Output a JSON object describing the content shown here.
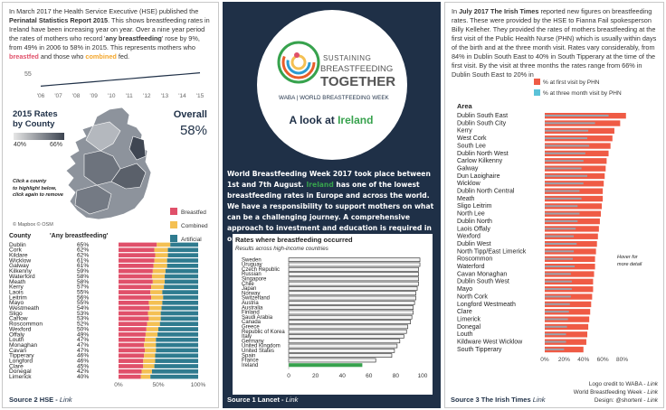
{
  "colors": {
    "breastfed": "#e0506a",
    "combined": "#f4c053",
    "artificial": "#2f7b8f",
    "green": "#37a24d",
    "orange": "#f4a62a",
    "navy": "#1f3047",
    "phn_first": "#ef5b45",
    "phn_three": "#5bc2d8"
  },
  "left": {
    "intro_1": "In March 2017 the Health Service Executive (HSE) published the ",
    "intro_report": "Perinatal Statistics Report 2015",
    "intro_2": ". This shows breastfeeding rates in Ireland have been increasing year on year. Over a nine year period the rates of mothers who record '",
    "intro_any": "any breastfeeding",
    "intro_3": "' rose by 9%, from 49% in 2006 to 58% in 2015. This represents mothers who ",
    "intro_breastfed": "breastfed",
    "intro_4": " and those who ",
    "intro_combined": "combined",
    "intro_5": " fed.",
    "trend": {
      "y_label": "55",
      "years": [
        "'06",
        "'07",
        "'08",
        "'09",
        "'10",
        "'11",
        "'12",
        "'13",
        "'14",
        "'15"
      ],
      "values": [
        49,
        50,
        51,
        52,
        53,
        54,
        55,
        56,
        57,
        58
      ]
    },
    "map": {
      "title_1": "2015 Rates",
      "title_2": "by County",
      "legend_min": "40%",
      "legend_max": "66%",
      "overall_label": "Overall",
      "overall_value": "58%",
      "click_hint_1": "Click a county",
      "click_hint_2": "to highlight below,",
      "click_hint_3": "click again to remove",
      "attribution": "© Mapbox  © OSM"
    },
    "legend": [
      "Breastfed",
      "Combined",
      "Artificial"
    ],
    "table_header_county": "County",
    "table_header_any": "'Any breastfeeding'",
    "axis_ticks": [
      "0%",
      "50%",
      "100%"
    ],
    "source_label": "Source 2 HSE - ",
    "source_link": "Link"
  },
  "county_rows": [
    {
      "county": "Dublin",
      "rate": "65%",
      "b": 48,
      "c": 17
    },
    {
      "county": "Cork",
      "rate": "62%",
      "b": 45,
      "c": 17
    },
    {
      "county": "Kildare",
      "rate": "62%",
      "b": 46,
      "c": 16
    },
    {
      "county": "Wicklow",
      "rate": "61%",
      "b": 45,
      "c": 16
    },
    {
      "county": "Galway",
      "rate": "61%",
      "b": 44,
      "c": 17
    },
    {
      "county": "Kilkenny",
      "rate": "59%",
      "b": 43,
      "c": 16
    },
    {
      "county": "Waterford",
      "rate": "58%",
      "b": 42,
      "c": 16
    },
    {
      "county": "Meath",
      "rate": "58%",
      "b": 43,
      "c": 15
    },
    {
      "county": "Kerry",
      "rate": "57%",
      "b": 41,
      "c": 16
    },
    {
      "county": "Laois",
      "rate": "55%",
      "b": 40,
      "c": 15
    },
    {
      "county": "Leitrim",
      "rate": "56%",
      "b": 41,
      "c": 15
    },
    {
      "county": "Mayo",
      "rate": "55%",
      "b": 38,
      "c": 17
    },
    {
      "county": "Westmeath",
      "rate": "54%",
      "b": 39,
      "c": 15
    },
    {
      "county": "Sligo",
      "rate": "53%",
      "b": 37,
      "c": 16
    },
    {
      "county": "Carlow",
      "rate": "53%",
      "b": 38,
      "c": 15
    },
    {
      "county": "Roscommon",
      "rate": "52%",
      "b": 36,
      "c": 16
    },
    {
      "county": "Wexford",
      "rate": "50%",
      "b": 35,
      "c": 15
    },
    {
      "county": "Offaly",
      "rate": "49%",
      "b": 34,
      "c": 15
    },
    {
      "county": "Louth",
      "rate": "47%",
      "b": 33,
      "c": 14
    },
    {
      "county": "Monaghan",
      "rate": "47%",
      "b": 32,
      "c": 15
    },
    {
      "county": "Cavan",
      "rate": "47%",
      "b": 33,
      "c": 14
    },
    {
      "county": "Tipperary",
      "rate": "46%",
      "b": 32,
      "c": 14
    },
    {
      "county": "Longford",
      "rate": "46%",
      "b": 31,
      "c": 15
    },
    {
      "county": "Clare",
      "rate": "45%",
      "b": 31,
      "c": 14
    },
    {
      "county": "Donegal",
      "rate": "42%",
      "b": 29,
      "c": 13
    },
    {
      "county": "Limerick",
      "rate": "40%",
      "b": 28,
      "c": 12
    }
  ],
  "mid": {
    "logo_line1": "SUSTAINING",
    "logo_line2": "BREASTFEEDING",
    "logo_line3": "TOGETHER",
    "logo_sub": "WABA | WORLD BREASTFEEDING WEEK",
    "look_prefix": "A look at ",
    "look_country": "Ireland",
    "text_1": "World Breastfeeding Week 2017 took place between 1st and 7th August. ",
    "text_ireland": "Ireland",
    "text_2": " has one of the lowest breastfeeding rates in Europe and across the world. We have a responsibility to support mothers on what can be a challenging journey. A comprehensive approach to investment and education is required in order to achieve s...",
    "chart_title": "Rates where breastfeeding occurred",
    "chart_subtitle": "Results across high-income countries",
    "source_label": "Source 1 Lancet - ",
    "source_link": "Link"
  },
  "chart_data": {
    "type": "bar",
    "title": "Rates where breastfeeding occurred",
    "subtitle": "Results across high-income countries",
    "categories": [
      "Sweden",
      "Uruguay",
      "Czech Republic",
      "Russian",
      "Singapore",
      "Chile",
      "Japan",
      "Norway",
      "Switzerland",
      "Austria",
      "Australia",
      "Finland",
      "Saudi Arabia",
      "Canada",
      "Greece",
      "Republic of Korea",
      "Italy",
      "Germany",
      "United Kingdom",
      "United States",
      "Spain",
      "France",
      "Ireland"
    ],
    "values": [
      98,
      98,
      97,
      97,
      97,
      97,
      96,
      95,
      95,
      94,
      93,
      93,
      92,
      91,
      89,
      88,
      86,
      83,
      81,
      79,
      77,
      65,
      55
    ],
    "highlight": "Ireland",
    "xlim": [
      0,
      100
    ],
    "xticks": [
      "0",
      "20",
      "40",
      "60",
      "80",
      "100"
    ]
  },
  "right": {
    "intro_1": "In ",
    "intro_date": "July 2017 The Irish Times",
    "intro_2": " reported new figures on breastfeeding rates. These were provided by the HSE to Fianna Fail spokesperson Billy Kelleher. They provided the rates of mothers breastfeeding at the first visit of the Public Health Nurse (PHN) which is usually within days of the birth and at the three month visit. Rates vary considerably, from 84% in Dublin South East to 40% in South Tipperary at the time of the first visit. By the visit at three months the rates range from 66% in Dublin South East to 20% in",
    "legend_first": "% at first visit by PHN",
    "legend_three": "% at three month visit by PHN",
    "area_header": "Area",
    "hover_1": "Hover for",
    "hover_2": "more detail",
    "axis_ticks": [
      "0%",
      "20%",
      "40%",
      "60%",
      "80%"
    ],
    "source_label": "Source 3 The Irish Times ",
    "source_link": "Link",
    "credit_1": "Logo credit to WABA - ",
    "credit_2": "World Breastfeeding Week - ",
    "credit_3": "Design: @shortenl - ",
    "link": "Link"
  },
  "phn_rows": [
    {
      "area": "Dublin South East",
      "first": 84,
      "three": 66
    },
    {
      "area": "Dublin South City",
      "first": 78,
      "three": 52
    },
    {
      "area": "Kerry",
      "first": 72,
      "three": 45
    },
    {
      "area": "West Cork",
      "first": 70,
      "three": 44
    },
    {
      "area": "South Lee",
      "first": 68,
      "three": 46
    },
    {
      "area": "Dublin North West",
      "first": 66,
      "three": 42
    },
    {
      "area": "Carlow Kilkenny",
      "first": 64,
      "three": 40
    },
    {
      "area": "Galway",
      "first": 63,
      "three": 38
    },
    {
      "area": "Dun Laoighaire",
      "first": 62,
      "three": 44
    },
    {
      "area": "Wicklow",
      "first": 61,
      "three": 40
    },
    {
      "area": "Dublin North Central",
      "first": 60,
      "three": 36
    },
    {
      "area": "Meath",
      "first": 60,
      "three": 38
    },
    {
      "area": "Sligo Leitrim",
      "first": 59,
      "three": 34
    },
    {
      "area": "North Lee",
      "first": 58,
      "three": 36
    },
    {
      "area": "Dublin North",
      "first": 57,
      "three": 34
    },
    {
      "area": "Laois Offaly",
      "first": 56,
      "three": 32
    },
    {
      "area": "Wexford",
      "first": 55,
      "three": 30
    },
    {
      "area": "Dublin West",
      "first": 54,
      "three": 33
    },
    {
      "area": "North Tipp/East Limerick",
      "first": 53,
      "three": 30
    },
    {
      "area": "Roscommon",
      "first": 52,
      "three": 29
    },
    {
      "area": "Waterford",
      "first": 52,
      "three": 31
    },
    {
      "area": "Cavan Monaghan",
      "first": 51,
      "three": 27
    },
    {
      "area": "Dublin South West",
      "first": 50,
      "three": 28
    },
    {
      "area": "Mayo",
      "first": 50,
      "three": 28
    },
    {
      "area": "North Cork",
      "first": 49,
      "three": 27
    },
    {
      "area": "Longford Westmeath",
      "first": 48,
      "three": 26
    },
    {
      "area": "Clare",
      "first": 47,
      "three": 25
    },
    {
      "area": "Limerick",
      "first": 46,
      "three": 24
    },
    {
      "area": "Donegal",
      "first": 45,
      "three": 23
    },
    {
      "area": "Louth",
      "first": 44,
      "three": 22
    },
    {
      "area": "Kildware West Wicklow",
      "first": 43,
      "three": 22
    },
    {
      "area": "South Tipperary",
      "first": 40,
      "three": 20
    }
  ]
}
